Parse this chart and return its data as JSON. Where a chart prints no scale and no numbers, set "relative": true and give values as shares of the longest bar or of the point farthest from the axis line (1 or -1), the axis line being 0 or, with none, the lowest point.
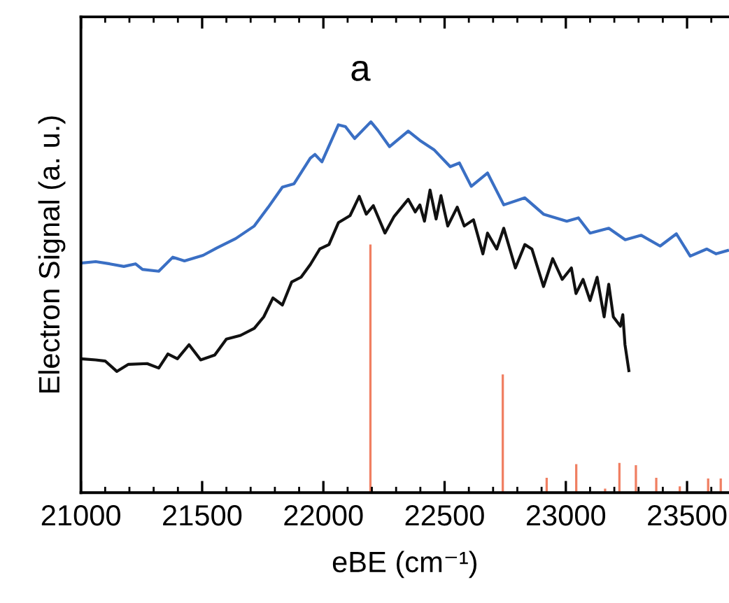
{
  "chart_data": {
    "type": "line",
    "relative": true,
    "xlabel": "eBE (cm⁻¹)",
    "ylabel": "Electron Signal (a. u.)",
    "annotations": [
      "a"
    ],
    "xlim": [
      21000,
      23673
    ],
    "xticks": [
      21000,
      21500,
      22000,
      22500,
      23000,
      23500
    ],
    "grid": false,
    "legend": false,
    "marker": "none",
    "line_style": "solid",
    "series": [
      {
        "color": "#3a6fc4",
        "x": [
          21000,
          21061,
          21119,
          21177,
          21225,
          21254,
          21321,
          21379,
          21427,
          21504,
          21561,
          21638,
          21715,
          21773,
          21831,
          21879,
          21946,
          21965,
          21994,
          22062,
          22091,
          22129,
          22196,
          22225,
          22273,
          22350,
          22398,
          22456,
          22523,
          22561,
          22610,
          22677,
          22744,
          22831,
          22908,
          23004,
          23052,
          23100,
          23177,
          23245,
          23311,
          23389,
          23456,
          23513,
          23581,
          23620,
          23667
        ],
        "values": [
          0.619,
          0.623,
          0.617,
          0.61,
          0.617,
          0.602,
          0.597,
          0.635,
          0.625,
          0.64,
          0.66,
          0.685,
          0.719,
          0.77,
          0.824,
          0.833,
          0.902,
          0.912,
          0.892,
          0.992,
          0.987,
          0.955,
          1.0,
          0.977,
          0.933,
          0.975,
          0.95,
          0.925,
          0.879,
          0.889,
          0.826,
          0.862,
          0.776,
          0.795,
          0.751,
          0.732,
          0.741,
          0.7,
          0.713,
          0.682,
          0.694,
          0.665,
          0.698,
          0.638,
          0.657,
          0.644,
          0.653
        ]
      },
      {
        "color": "#111111",
        "x": [
          21000,
          21061,
          21100,
          21148,
          21196,
          21273,
          21321,
          21359,
          21398,
          21446,
          21494,
          21552,
          21600,
          21658,
          21715,
          21754,
          21792,
          21831,
          21869,
          21908,
          21946,
          21985,
          22023,
          22062,
          22110,
          22148,
          22177,
          22206,
          22254,
          22292,
          22350,
          22379,
          22398,
          22417,
          22440,
          22465,
          22485,
          22513,
          22552,
          22581,
          22619,
          22658,
          22677,
          22715,
          22744,
          22792,
          22831,
          22860,
          22908,
          22946,
          22985,
          23023,
          23042,
          23071,
          23100,
          23129,
          23158,
          23177,
          23196,
          23225,
          23235,
          23244,
          23260
        ],
        "values": [
          0.361,
          0.358,
          0.355,
          0.327,
          0.346,
          0.348,
          0.336,
          0.374,
          0.361,
          0.399,
          0.358,
          0.371,
          0.414,
          0.424,
          0.443,
          0.474,
          0.525,
          0.506,
          0.568,
          0.581,
          0.615,
          0.657,
          0.669,
          0.728,
          0.747,
          0.799,
          0.751,
          0.774,
          0.7,
          0.745,
          0.791,
          0.757,
          0.776,
          0.732,
          0.816,
          0.738,
          0.801,
          0.719,
          0.77,
          0.719,
          0.736,
          0.644,
          0.7,
          0.657,
          0.713,
          0.606,
          0.669,
          0.657,
          0.556,
          0.631,
          0.575,
          0.606,
          0.537,
          0.575,
          0.518,
          0.581,
          0.474,
          0.562,
          0.474,
          0.449,
          0.48,
          0.399,
          0.329
        ]
      },
      {
        "type": "bar",
        "color": "#f07f62",
        "x": [
          22194,
          22740,
          22921,
          23043,
          23162,
          23221,
          23289,
          23373,
          23470,
          23587,
          23639
        ],
        "values": [
          0.669,
          0.319,
          0.04,
          0.077,
          0.011,
          0.08,
          0.074,
          0.04,
          0.017,
          0.038,
          0.038
        ]
      }
    ]
  }
}
